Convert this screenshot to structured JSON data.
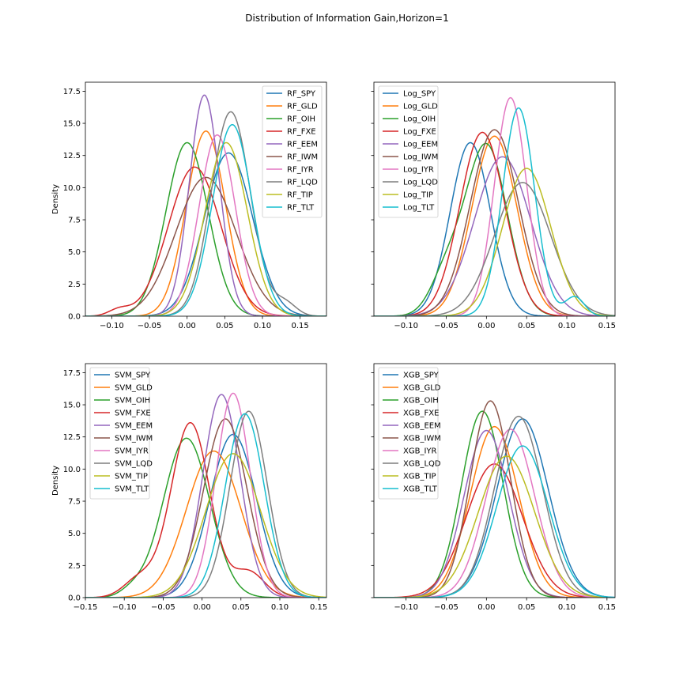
{
  "figure": {
    "title": "Distribution of Information Gain,Horizon=1"
  },
  "colors": [
    "#1f77b4",
    "#ff7f0e",
    "#2ca02c",
    "#d62728",
    "#9467bd",
    "#8c564b",
    "#e377c2",
    "#7f7f7f",
    "#bcbd22",
    "#17becf"
  ],
  "chart_data": [
    {
      "type": "line",
      "ylabel": "Density",
      "xlim": [
        -0.135,
        0.185
      ],
      "ylim": [
        0,
        18.2
      ],
      "xticks": [
        -0.1,
        -0.05,
        0.0,
        0.05,
        0.1,
        0.15
      ],
      "xtick_labels": [
        "−0.10",
        "−0.05",
        "0.00",
        "0.05",
        "0.10",
        "0.15"
      ],
      "yticks": [
        0,
        2.5,
        5,
        7.5,
        10,
        12.5,
        15,
        17.5
      ],
      "ytick_labels": [
        "0.0",
        "2.5",
        "5.0",
        "7.5",
        "10.0",
        "12.5",
        "15.0",
        "17.5"
      ],
      "legend": "top-right",
      "series": [
        {
          "name": "RF_SPY",
          "peaks": [
            [
              0.055,
              12.7,
              0.032
            ]
          ]
        },
        {
          "name": "RF_GLD",
          "peaks": [
            [
              0.025,
              14.4,
              0.026
            ]
          ]
        },
        {
          "name": "RF_OIH",
          "peaks": [
            [
              0.0,
              13.5,
              0.028
            ]
          ]
        },
        {
          "name": "RF_FXE",
          "peaks": [
            [
              0.01,
              11.6,
              0.035
            ],
            [
              -0.09,
              0.5,
              0.014
            ]
          ]
        },
        {
          "name": "RF_EEM",
          "peaks": [
            [
              0.023,
              17.2,
              0.02
            ]
          ]
        },
        {
          "name": "RF_IWM",
          "peaks": [
            [
              0.025,
              10.8,
              0.04
            ]
          ]
        },
        {
          "name": "RF_IYR",
          "peaks": [
            [
              0.04,
              14.1,
              0.024
            ]
          ]
        },
        {
          "name": "RF_LQD",
          "peaks": [
            [
              0.058,
              15.9,
              0.026
            ],
            [
              0.13,
              1.0,
              0.015
            ]
          ]
        },
        {
          "name": "RF_TIP",
          "peaks": [
            [
              0.052,
              13.5,
              0.028
            ]
          ]
        },
        {
          "name": "RF_TLT",
          "peaks": [
            [
              0.06,
              14.9,
              0.026
            ]
          ]
        }
      ]
    },
    {
      "type": "line",
      "ylabel": "",
      "xlim": [
        -0.14,
        0.16
      ],
      "ylim": [
        0,
        18.2
      ],
      "xticks": [
        -0.1,
        -0.05,
        0.0,
        0.05,
        0.1,
        0.15
      ],
      "xtick_labels": [
        "−0.10",
        "−0.05",
        "0.00",
        "0.05",
        "0.10",
        "0.15"
      ],
      "yticks": [],
      "ytick_labels": [],
      "legend": "top-left",
      "series": [
        {
          "name": "Log_SPY",
          "peaks": [
            [
              -0.02,
              13.5,
              0.025
            ]
          ]
        },
        {
          "name": "Log_GLD",
          "peaks": [
            [
              0.01,
              14.0,
              0.028
            ]
          ]
        },
        {
          "name": "Log_OIH",
          "peaks": [
            [
              0.0,
              13.3,
              0.026
            ],
            [
              -0.05,
              3.0,
              0.02
            ]
          ]
        },
        {
          "name": "Log_FXE",
          "peaks": [
            [
              -0.005,
              14.3,
              0.028
            ]
          ]
        },
        {
          "name": "Log_EEM",
          "peaks": [
            [
              0.02,
              12.4,
              0.035
            ]
          ]
        },
        {
          "name": "Log_IWM",
          "peaks": [
            [
              0.01,
              14.5,
              0.03
            ]
          ]
        },
        {
          "name": "Log_IYR",
          "peaks": [
            [
              0.03,
              17.0,
              0.02
            ]
          ]
        },
        {
          "name": "Log_LQD",
          "peaks": [
            [
              0.045,
              10.4,
              0.035
            ]
          ]
        },
        {
          "name": "Log_TIP",
          "peaks": [
            [
              0.05,
              11.5,
              0.03
            ]
          ]
        },
        {
          "name": "Log_TLT",
          "peaks": [
            [
              0.04,
              16.2,
              0.02
            ],
            [
              0.11,
              1.5,
              0.012
            ]
          ]
        }
      ]
    },
    {
      "type": "line",
      "ylabel": "Density",
      "xlim": [
        -0.15,
        0.16
      ],
      "ylim": [
        0,
        18.2
      ],
      "xticks": [
        -0.15,
        -0.1,
        -0.05,
        0.0,
        0.05,
        0.1,
        0.15
      ],
      "xtick_labels": [
        "−0.15",
        "−0.10",
        "−0.05",
        "0.00",
        "0.05",
        "0.10",
        "0.15"
      ],
      "yticks": [
        0,
        2.5,
        5,
        7.5,
        10,
        12.5,
        15,
        17.5
      ],
      "ytick_labels": [
        "0.0",
        "2.5",
        "5.0",
        "7.5",
        "10.0",
        "12.5",
        "15.0",
        "17.5"
      ],
      "legend": "top-left",
      "series": [
        {
          "name": "SVM_SPY",
          "peaks": [
            [
              0.04,
              12.7,
              0.03
            ]
          ]
        },
        {
          "name": "SVM_GLD",
          "peaks": [
            [
              0.015,
              11.4,
              0.035
            ]
          ]
        },
        {
          "name": "SVM_OIH",
          "peaks": [
            [
              -0.02,
              12.4,
              0.03
            ],
            [
              -0.09,
              0.5,
              0.015
            ]
          ]
        },
        {
          "name": "SVM_FXE",
          "peaks": [
            [
              -0.015,
              13.6,
              0.025
            ],
            [
              -0.08,
              1.5,
              0.02
            ],
            [
              0.06,
              2.0,
              0.02
            ]
          ]
        },
        {
          "name": "SVM_EEM",
          "peaks": [
            [
              0.025,
              15.8,
              0.024
            ]
          ]
        },
        {
          "name": "SVM_IWM",
          "peaks": [
            [
              0.03,
              13.9,
              0.028
            ]
          ]
        },
        {
          "name": "SVM_IYR",
          "peaks": [
            [
              0.04,
              15.9,
              0.022
            ]
          ]
        },
        {
          "name": "SVM_LQD",
          "peaks": [
            [
              0.06,
              14.5,
              0.024
            ]
          ]
        },
        {
          "name": "SVM_TIP",
          "peaks": [
            [
              0.04,
              11.2,
              0.035
            ]
          ]
        },
        {
          "name": "SVM_TLT",
          "peaks": [
            [
              0.055,
              14.3,
              0.025
            ]
          ]
        }
      ]
    },
    {
      "type": "line",
      "ylabel": "",
      "xlim": [
        -0.14,
        0.16
      ],
      "ylim": [
        0,
        18.2
      ],
      "xticks": [
        -0.1,
        -0.05,
        0.0,
        0.05,
        0.1,
        0.15
      ],
      "xtick_labels": [
        "−0.10",
        "−0.05",
        "0.00",
        "0.05",
        "0.10",
        "0.15"
      ],
      "yticks": [],
      "ytick_labels": [],
      "legend": "top-left",
      "series": [
        {
          "name": "XGB_SPY",
          "peaks": [
            [
              0.045,
              13.9,
              0.032
            ]
          ]
        },
        {
          "name": "XGB_GLD",
          "peaks": [
            [
              0.01,
              13.3,
              0.03
            ]
          ]
        },
        {
          "name": "XGB_OIH",
          "peaks": [
            [
              -0.005,
              14.5,
              0.026
            ]
          ]
        },
        {
          "name": "XGB_FXE",
          "peaks": [
            [
              0.01,
              10.4,
              0.035
            ]
          ]
        },
        {
          "name": "XGB_EEM",
          "peaks": [
            [
              0.0,
              13.0,
              0.028
            ]
          ]
        },
        {
          "name": "XGB_IWM",
          "peaks": [
            [
              0.005,
              15.3,
              0.025
            ]
          ]
        },
        {
          "name": "XGB_IYR",
          "peaks": [
            [
              0.03,
              13.1,
              0.03
            ]
          ]
        },
        {
          "name": "XGB_LQD",
          "peaks": [
            [
              0.04,
              14.1,
              0.03
            ]
          ]
        },
        {
          "name": "XGB_TIP",
          "peaks": [
            [
              0.025,
              11.0,
              0.035
            ]
          ]
        },
        {
          "name": "XGB_TLT",
          "peaks": [
            [
              0.045,
              11.8,
              0.032
            ]
          ]
        }
      ]
    }
  ]
}
